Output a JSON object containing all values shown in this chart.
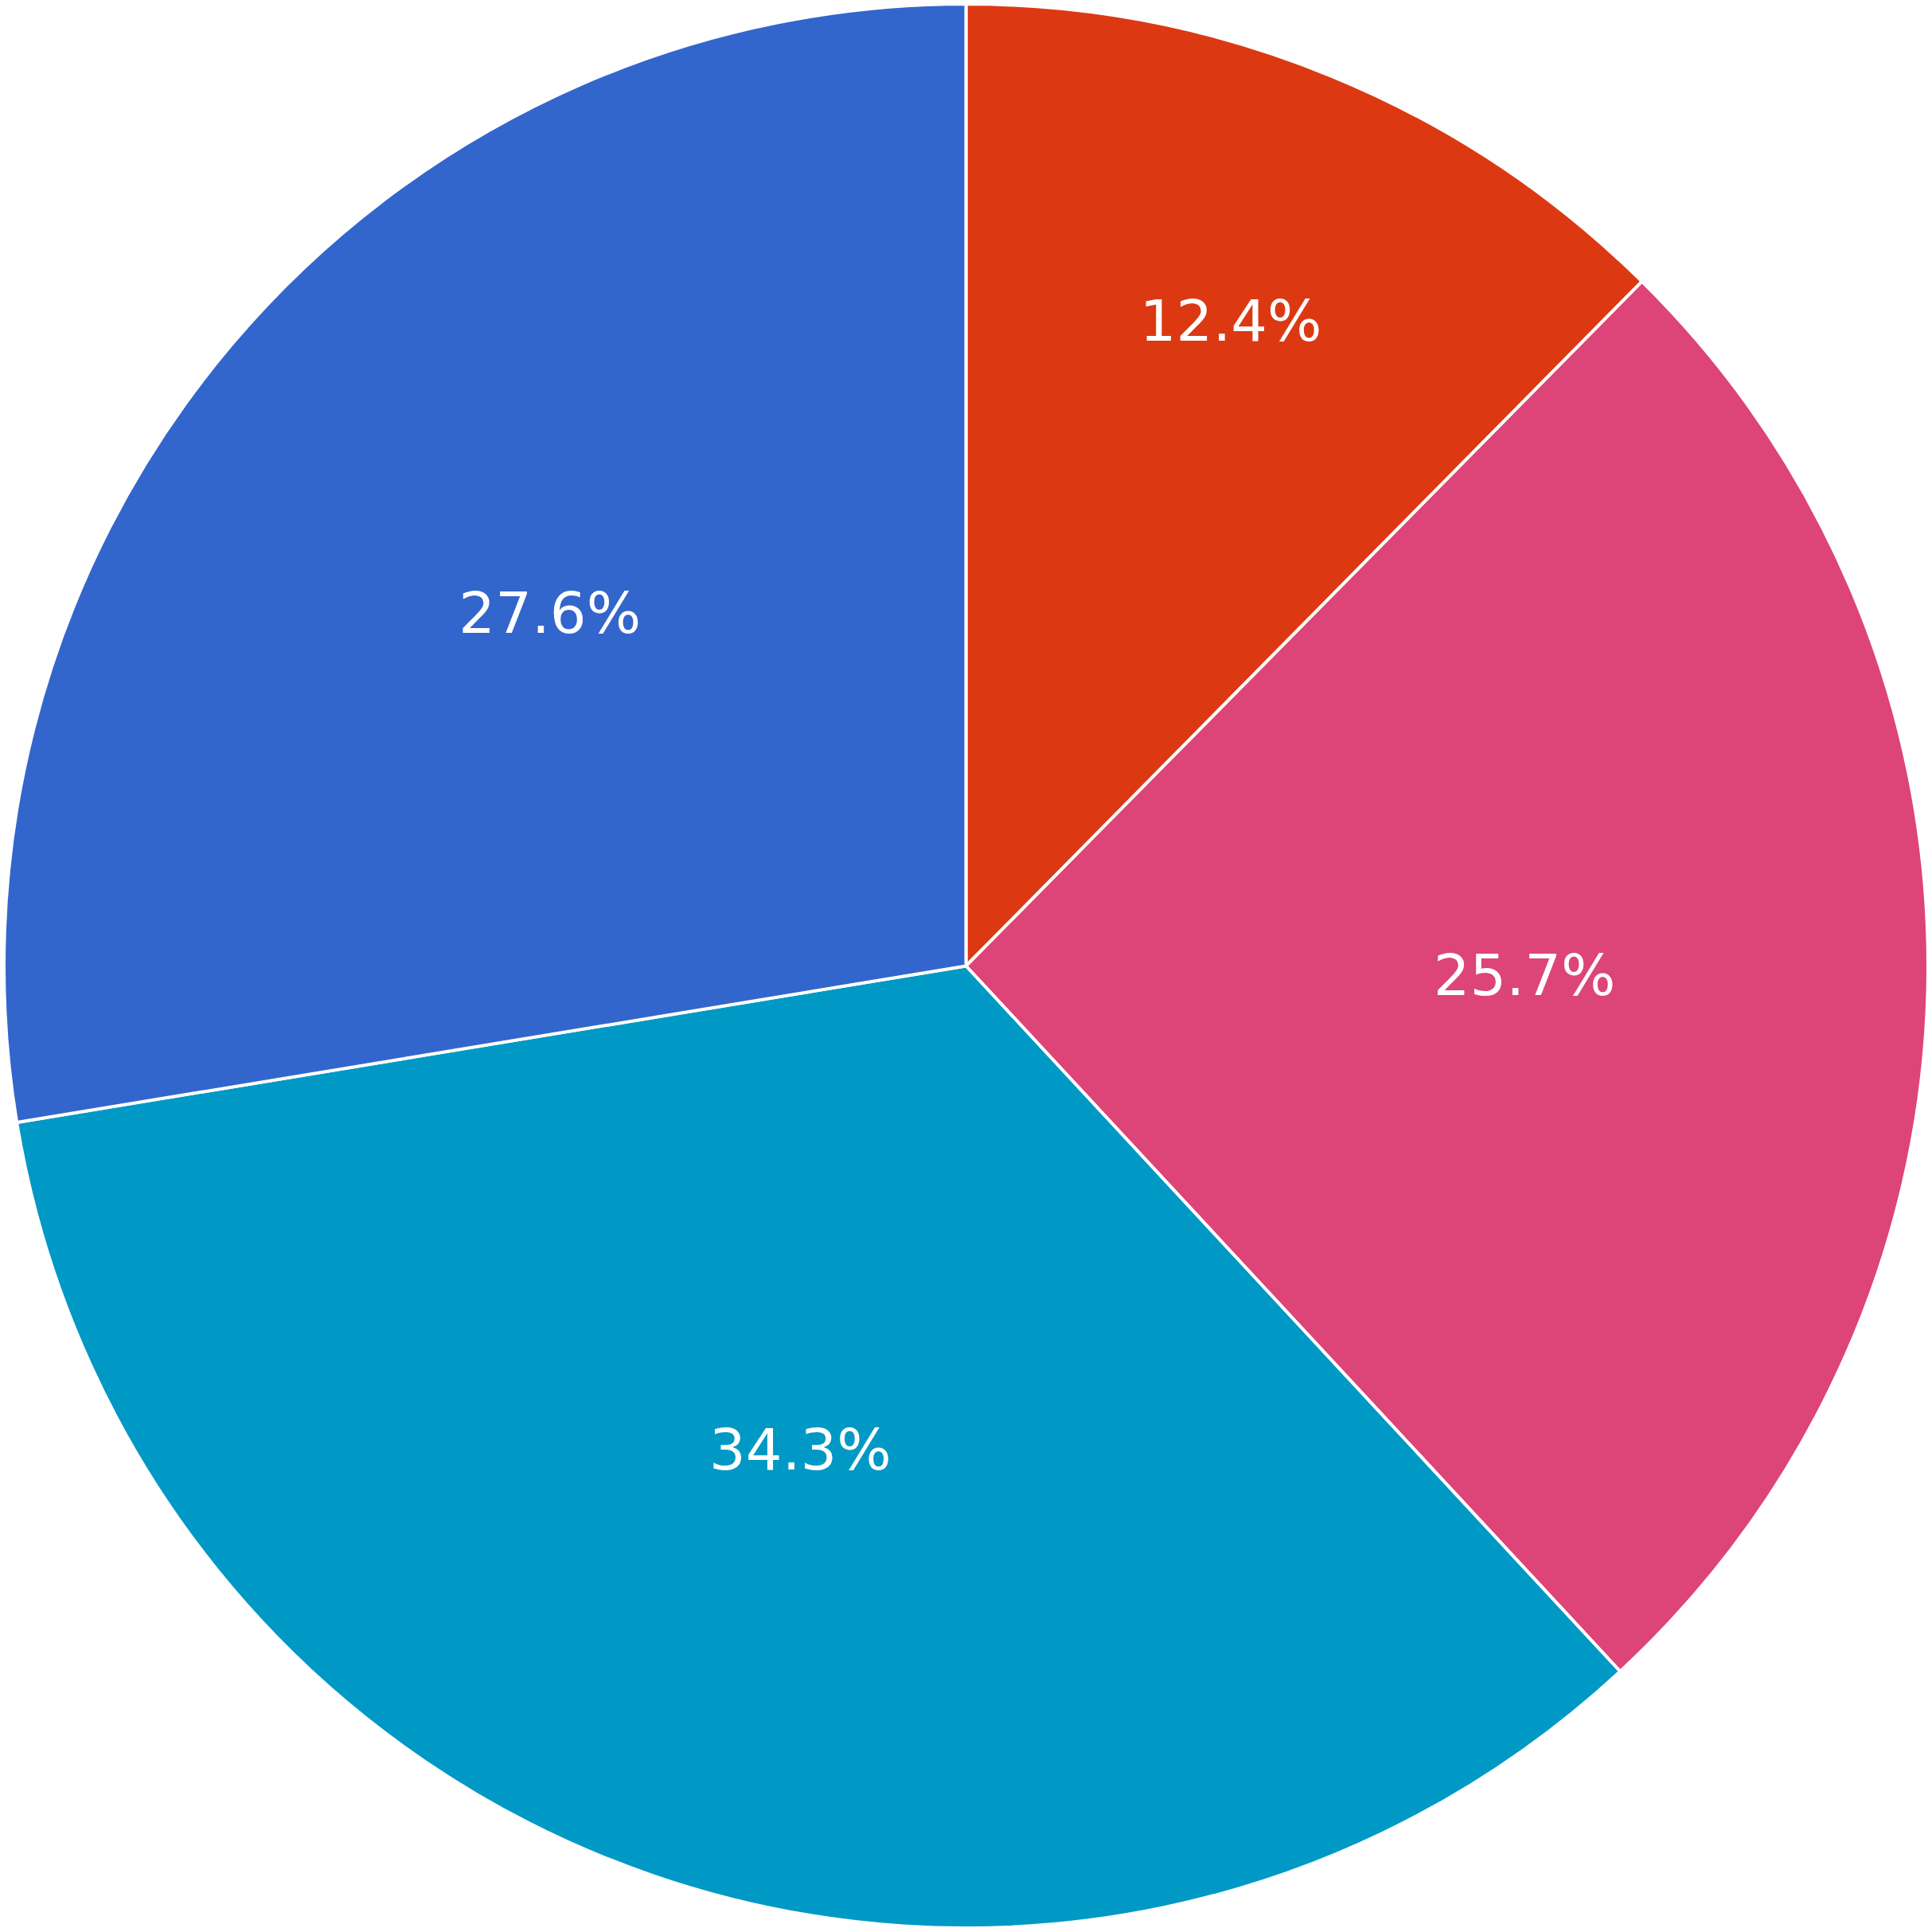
{
  "chart_data": {
    "type": "pie",
    "categories": [
      null,
      null,
      null,
      null
    ],
    "values": [
      12.4,
      25.7,
      34.3,
      27.6
    ],
    "value_labels": [
      "12.4%",
      "25.7%",
      "34.3%",
      "27.6%"
    ],
    "colors": [
      "#dc3912",
      "#dd4477",
      "#0099c6",
      "#3366cc"
    ]
  }
}
